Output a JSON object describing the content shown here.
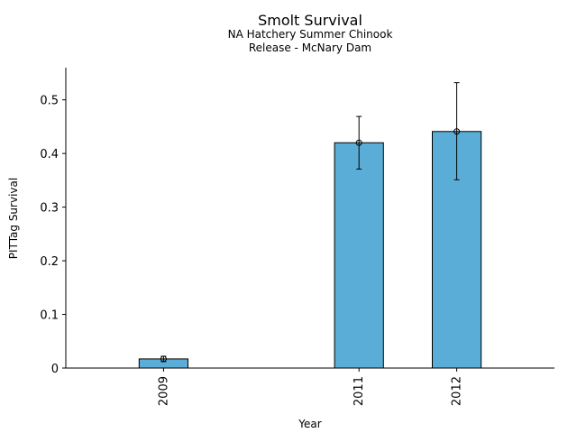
{
  "chart_data": {
    "type": "bar",
    "title": "Smolt Survival",
    "subtitle_lines": [
      "NA Hatchery Summer Chinook",
      "Release - McNary Dam"
    ],
    "xlabel": "Year",
    "ylabel": "PITTag Survival",
    "x": [
      2009,
      2011,
      2012
    ],
    "xlim": [
      2008,
      2013
    ],
    "ylim": [
      0,
      0.56
    ],
    "yticks": [
      0,
      0.1,
      0.2,
      0.3,
      0.4,
      0.5
    ],
    "values": [
      0.017,
      0.42,
      0.441
    ],
    "error_low": [
      0.012,
      0.371,
      0.351
    ],
    "error_high": [
      0.022,
      0.469,
      0.532
    ],
    "bar_color": "#5aadd6",
    "grid": false,
    "legend": "none"
  }
}
